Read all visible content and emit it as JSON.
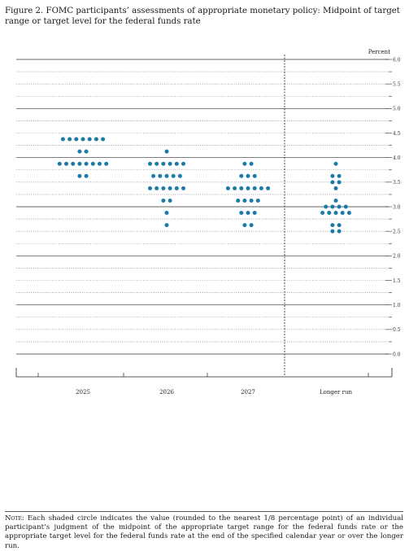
{
  "title": "Figure 2.  FOMC participants’ assessments of appropriate monetary policy:  Midpoint of target range or target level for the federal funds rate",
  "note": {
    "label": "Note",
    "text": ":  Each shaded circle indicates the value (rounded to the nearest 1/8 percentage point) of an individual participant’s judgment of the midpoint of the appropriate target range for the federal funds rate or the appropriate target level for the federal funds rate at the end of the specified calendar year or over the longer run."
  },
  "colors": {
    "dot": "#1b7aa8",
    "solid_grid": "#333333",
    "dotted_grid": "#777777"
  },
  "chart_data": {
    "type": "scatter",
    "ylabel": "Percent",
    "ylim": [
      0,
      6
    ],
    "yticks": [
      "0.0",
      "0.5",
      "1.0",
      "1.5",
      "2.0",
      "2.5",
      "3.0",
      "3.5",
      "4.0",
      "4.5",
      "5.0",
      "5.5",
      "6.0"
    ],
    "categories": [
      "2025",
      "2026",
      "2027",
      "Longer run"
    ],
    "separator_before": "Longer run",
    "points": [
      {
        "category": "2025",
        "dots": [
          {
            "y": 4.375,
            "count": 7
          },
          {
            "y": 4.125,
            "count": 2
          },
          {
            "y": 3.875,
            "count": 8
          },
          {
            "y": 3.625,
            "count": 2
          }
        ]
      },
      {
        "category": "2026",
        "dots": [
          {
            "y": 4.125,
            "count": 1
          },
          {
            "y": 3.875,
            "count": 6
          },
          {
            "y": 3.625,
            "count": 5
          },
          {
            "y": 3.375,
            "count": 6
          },
          {
            "y": 3.125,
            "count": 2
          },
          {
            "y": 2.875,
            "count": 1
          },
          {
            "y": 2.625,
            "count": 1
          }
        ]
      },
      {
        "category": "2027",
        "dots": [
          {
            "y": 3.875,
            "count": 2
          },
          {
            "y": 3.625,
            "count": 3
          },
          {
            "y": 3.375,
            "count": 7
          },
          {
            "y": 3.125,
            "count": 4
          },
          {
            "y": 2.875,
            "count": 3
          },
          {
            "y": 2.625,
            "count": 2
          }
        ]
      },
      {
        "category": "Longer run",
        "dots": [
          {
            "y": 3.875,
            "count": 1
          },
          {
            "y": 3.625,
            "count": 2
          },
          {
            "y": 3.5,
            "count": 2
          },
          {
            "y": 3.375,
            "count": 1
          },
          {
            "y": 3.125,
            "count": 1
          },
          {
            "y": 3.0,
            "count": 4
          },
          {
            "y": 2.875,
            "count": 5
          },
          {
            "y": 2.625,
            "count": 2
          },
          {
            "y": 2.5,
            "count": 2
          }
        ]
      }
    ]
  }
}
